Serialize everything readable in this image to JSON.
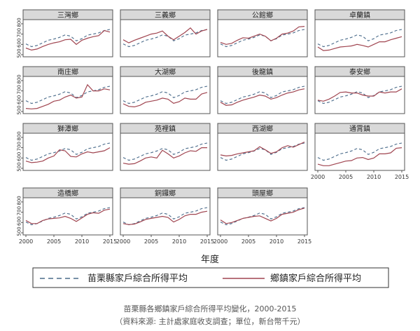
{
  "chart_data": {
    "type": "line",
    "panel_grid": "small-multiples 4 columns",
    "x_axis_label": "年度",
    "x_ticks": [
      2000,
      2005,
      2010,
      2015
    ],
    "y_ticks": [
      500,
      600,
      700,
      800
    ],
    "ylim": [
      500,
      820
    ],
    "xlim": [
      2000,
      2015
    ],
    "legend": {
      "placement": "bottom",
      "county_label": "苗栗縣家戶綜合所得平均",
      "township_label": "鄉鎮家戶綜合所得平均"
    },
    "years": [
      2000,
      2001,
      2002,
      2003,
      2004,
      2005,
      2006,
      2007,
      2008,
      2009,
      2010,
      2011,
      2012,
      2013,
      2014,
      2015
    ],
    "county_average": [
      605,
      578,
      590,
      615,
      640,
      652,
      668,
      692,
      680,
      635,
      655,
      690,
      700,
      712,
      735,
      745
    ],
    "panels": [
      {
        "title": "三灣鄉",
        "township": [
          565,
          545,
          555,
          580,
          600,
          615,
          625,
          645,
          650,
          600,
          640,
          660,
          675,
          685,
          735,
          720
        ]
      },
      {
        "title": "三義鄉",
        "township": [
          645,
          615,
          640,
          660,
          680,
          700,
          710,
          730,
          680,
          645,
          680,
          715,
          760,
          700,
          730,
          745
        ]
      },
      {
        "title": "公館鄉",
        "township": [
          620,
          600,
          610,
          640,
          665,
          660,
          680,
          700,
          680,
          635,
          660,
          700,
          710,
          730,
          770,
          775
        ]
      },
      {
        "title": "卓蘭鎮",
        "township": [
          575,
          540,
          545,
          560,
          575,
          580,
          585,
          600,
          590,
          575,
          600,
          625,
          625,
          645,
          660,
          675
        ]
      },
      {
        "title": "南庄鄉",
        "township": [
          530,
          525,
          530,
          550,
          570,
          600,
          610,
          640,
          660,
          630,
          640,
          760,
          700,
          700,
          720,
          710
        ]
      },
      {
        "title": "大湖鄉",
        "township": [
          575,
          550,
          545,
          560,
          590,
          600,
          610,
          630,
          620,
          580,
          595,
          630,
          620,
          620,
          670,
          685
        ]
      },
      {
        "title": "後龍鎮",
        "township": [
          590,
          560,
          565,
          590,
          610,
          625,
          640,
          660,
          650,
          620,
          635,
          660,
          680,
          690,
          710,
          720
        ]
      },
      {
        "title": "泰安鄉",
        "township": [
          610,
          600,
          620,
          650,
          685,
          690,
          680,
          680,
          660,
          650,
          650,
          690,
          680,
          690,
          690,
          720
        ]
      },
      {
        "title": "獅潭鄉",
        "township": [
          570,
          555,
          560,
          570,
          600,
          620,
          680,
          670,
          615,
          610,
          640,
          660,
          650,
          660,
          670,
          700
        ]
      },
      {
        "title": "苑裡鎮",
        "township": [
          550,
          540,
          545,
          570,
          600,
          610,
          600,
          675,
          640,
          600,
          620,
          650,
          670,
          665,
          700,
          700
        ]
      },
      {
        "title": "西湖鄉",
        "township": [
          630,
          620,
          625,
          640,
          650,
          660,
          670,
          710,
          680,
          645,
          660,
          700,
          720,
          705,
          730,
          755
        ]
      },
      {
        "title": "通霄鎮",
        "township": [
          540,
          525,
          525,
          540,
          555,
          570,
          575,
          600,
          605,
          585,
          600,
          640,
          640,
          650,
          695,
          700
        ]
      },
      {
        "title": "造橋鄉",
        "township": [
          620,
          590,
          590,
          620,
          635,
          640,
          645,
          660,
          640,
          610,
          645,
          680,
          695,
          690,
          720,
          730
        ]
      },
      {
        "title": "銅鑼鄉",
        "township": [
          590,
          580,
          585,
          605,
          630,
          640,
          650,
          660,
          650,
          605,
          630,
          665,
          680,
          680,
          700,
          710
        ]
      },
      {
        "title": "頭屋鄉",
        "township": [
          625,
          590,
          600,
          620,
          640,
          650,
          660,
          665,
          640,
          615,
          640,
          680,
          690,
          700,
          725,
          740
        ]
      }
    ]
  },
  "caption": {
    "line1": "苗栗縣各鄉鎮家戶綜合所得平均變化，2000-2015",
    "line2": "（資料來源: 主計處家庭收支調查；單位，新台幣千元）"
  },
  "colors": {
    "county_line": "#4a6b8a",
    "township_line": "#a04550",
    "panel_title_bg": "#d9d9d9",
    "frame": "#555555"
  }
}
